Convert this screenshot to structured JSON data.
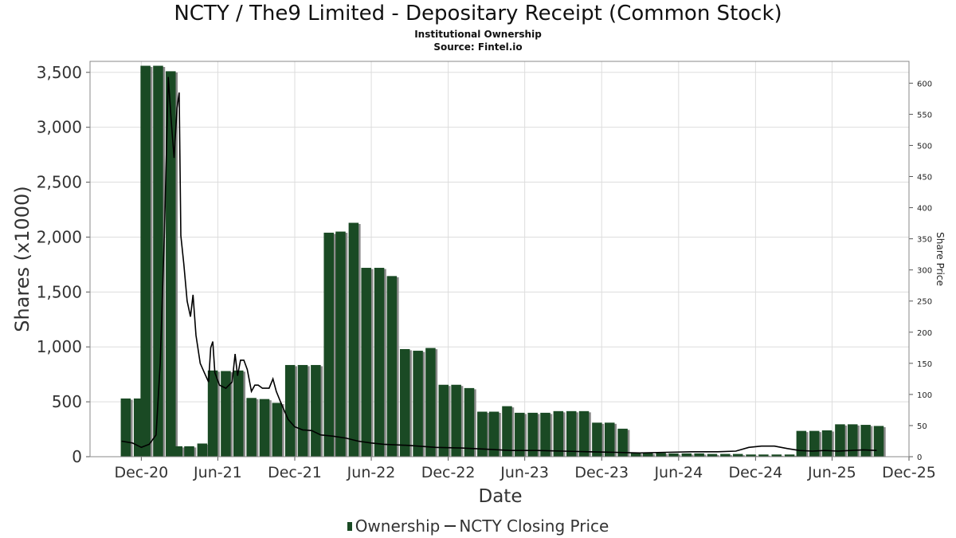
{
  "title": "NCTY / The9 Limited - Depositary Receipt (Common Stock)",
  "subtitle1": "Institutional Ownership",
  "subtitle2": "Source: Fintel.io",
  "legend": {
    "ownership": "Ownership",
    "price": "NCTY Closing Price"
  },
  "colors": {
    "bar": "#1a4a24",
    "bar_shadow": "#8a8a8a",
    "price_line": "#000000",
    "grid": "#dddddd",
    "frame": "#888888"
  },
  "chart_data": {
    "type": "bar",
    "xlabel": "Date",
    "ylabel": "Shares (x1000)",
    "y2label": "Share Price",
    "xlim": [
      "2020-08-01",
      "2025-12-01"
    ],
    "ylim": [
      0,
      3600
    ],
    "y2lim": [
      0,
      635
    ],
    "grid": true,
    "legend_position": "bottom",
    "x_ticks": [
      {
        "date": "2020-12-01",
        "label": "Dec-20"
      },
      {
        "date": "2021-06-01",
        "label": "Jun-21"
      },
      {
        "date": "2021-12-01",
        "label": "Dec-21"
      },
      {
        "date": "2022-06-01",
        "label": "Jun-22"
      },
      {
        "date": "2022-12-01",
        "label": "Dec-22"
      },
      {
        "date": "2023-06-01",
        "label": "Jun-23"
      },
      {
        "date": "2023-12-01",
        "label": "Dec-23"
      },
      {
        "date": "2024-06-01",
        "label": "Jun-24"
      },
      {
        "date": "2024-12-01",
        "label": "Dec-24"
      },
      {
        "date": "2025-06-01",
        "label": "Jun-25"
      },
      {
        "date": "2025-12-01",
        "label": "Dec-25"
      }
    ],
    "y_ticks": [
      {
        "value": 0,
        "label": "0"
      },
      {
        "value": 500,
        "label": "500"
      },
      {
        "value": 1000,
        "label": "1,000"
      },
      {
        "value": 1500,
        "label": "1,500"
      },
      {
        "value": 2000,
        "label": "2,000"
      },
      {
        "value": 2500,
        "label": "2,500"
      },
      {
        "value": 3000,
        "label": "3,000"
      },
      {
        "value": 3500,
        "label": "3,500"
      }
    ],
    "y2_ticks": [
      {
        "value": 0,
        "label": "0"
      },
      {
        "value": 50,
        "label": "50"
      },
      {
        "value": 100,
        "label": "100"
      },
      {
        "value": 150,
        "label": "150"
      },
      {
        "value": 200,
        "label": "200"
      },
      {
        "value": 250,
        "label": "250"
      },
      {
        "value": 300,
        "label": "300"
      },
      {
        "value": 350,
        "label": "350"
      },
      {
        "value": 400,
        "label": "400"
      },
      {
        "value": 450,
        "label": "450"
      },
      {
        "value": 500,
        "label": "500"
      },
      {
        "value": 550,
        "label": "550"
      },
      {
        "value": 600,
        "label": "600"
      }
    ],
    "series": [
      {
        "name": "Ownership",
        "kind": "bar",
        "points": [
          {
            "date": "2020-10-15",
            "value": 530
          },
          {
            "date": "2020-11-15",
            "value": 530
          },
          {
            "date": "2020-12-01",
            "value": 3560
          },
          {
            "date": "2020-12-31",
            "value": 3560
          },
          {
            "date": "2021-01-30",
            "value": 3510
          },
          {
            "date": "2021-02-15",
            "value": 95
          },
          {
            "date": "2021-03-15",
            "value": 95
          },
          {
            "date": "2021-04-15",
            "value": 120
          },
          {
            "date": "2021-05-10",
            "value": 785
          },
          {
            "date": "2021-06-10",
            "value": 780
          },
          {
            "date": "2021-07-10",
            "value": 785
          },
          {
            "date": "2021-08-10",
            "value": 535
          },
          {
            "date": "2021-09-10",
            "value": 525
          },
          {
            "date": "2021-10-10",
            "value": 490
          },
          {
            "date": "2021-11-10",
            "value": 835
          },
          {
            "date": "2021-12-10",
            "value": 835
          },
          {
            "date": "2022-01-10",
            "value": 835
          },
          {
            "date": "2022-02-10",
            "value": 2040
          },
          {
            "date": "2022-03-10",
            "value": 2050
          },
          {
            "date": "2022-04-10",
            "value": 2130
          },
          {
            "date": "2022-05-10",
            "value": 1720
          },
          {
            "date": "2022-06-10",
            "value": 1720
          },
          {
            "date": "2022-07-10",
            "value": 1645
          },
          {
            "date": "2022-08-10",
            "value": 980
          },
          {
            "date": "2022-09-10",
            "value": 965
          },
          {
            "date": "2022-10-10",
            "value": 990
          },
          {
            "date": "2022-11-10",
            "value": 655
          },
          {
            "date": "2022-12-10",
            "value": 655
          },
          {
            "date": "2023-01-10",
            "value": 625
          },
          {
            "date": "2023-02-10",
            "value": 410
          },
          {
            "date": "2023-03-10",
            "value": 410
          },
          {
            "date": "2023-04-10",
            "value": 460
          },
          {
            "date": "2023-05-10",
            "value": 400
          },
          {
            "date": "2023-06-10",
            "value": 400
          },
          {
            "date": "2023-07-10",
            "value": 400
          },
          {
            "date": "2023-08-10",
            "value": 415
          },
          {
            "date": "2023-09-10",
            "value": 415
          },
          {
            "date": "2023-10-10",
            "value": 415
          },
          {
            "date": "2023-11-10",
            "value": 310
          },
          {
            "date": "2023-12-10",
            "value": 310
          },
          {
            "date": "2024-01-10",
            "value": 255
          },
          {
            "date": "2024-02-10",
            "value": 35
          },
          {
            "date": "2024-03-10",
            "value": 35
          },
          {
            "date": "2024-04-10",
            "value": 35
          },
          {
            "date": "2024-05-10",
            "value": 30
          },
          {
            "date": "2024-06-10",
            "value": 30
          },
          {
            "date": "2024-07-10",
            "value": 30
          },
          {
            "date": "2024-08-10",
            "value": 25
          },
          {
            "date": "2024-09-10",
            "value": 25
          },
          {
            "date": "2024-10-10",
            "value": 25
          },
          {
            "date": "2024-11-10",
            "value": 20
          },
          {
            "date": "2024-12-10",
            "value": 20
          },
          {
            "date": "2025-01-10",
            "value": 20
          },
          {
            "date": "2025-02-10",
            "value": 20
          },
          {
            "date": "2025-03-10",
            "value": 235
          },
          {
            "date": "2025-04-10",
            "value": 235
          },
          {
            "date": "2025-05-10",
            "value": 240
          },
          {
            "date": "2025-06-10",
            "value": 295
          },
          {
            "date": "2025-07-10",
            "value": 295
          },
          {
            "date": "2025-08-10",
            "value": 290
          },
          {
            "date": "2025-09-10",
            "value": 280
          }
        ]
      },
      {
        "name": "NCTY Closing Price",
        "kind": "line",
        "axis": "right",
        "points": [
          {
            "date": "2020-10-15",
            "value": 25
          },
          {
            "date": "2020-11-10",
            "value": 22
          },
          {
            "date": "2020-12-01",
            "value": 15
          },
          {
            "date": "2020-12-20",
            "value": 20
          },
          {
            "date": "2021-01-05",
            "value": 35
          },
          {
            "date": "2021-01-15",
            "value": 150
          },
          {
            "date": "2021-01-25",
            "value": 360
          },
          {
            "date": "2021-02-03",
            "value": 610
          },
          {
            "date": "2021-02-10",
            "value": 540
          },
          {
            "date": "2021-02-17",
            "value": 480
          },
          {
            "date": "2021-02-24",
            "value": 560
          },
          {
            "date": "2021-03-01",
            "value": 585
          },
          {
            "date": "2021-03-05",
            "value": 355
          },
          {
            "date": "2021-03-12",
            "value": 310
          },
          {
            "date": "2021-03-20",
            "value": 250
          },
          {
            "date": "2021-03-28",
            "value": 225
          },
          {
            "date": "2021-04-03",
            "value": 260
          },
          {
            "date": "2021-04-10",
            "value": 195
          },
          {
            "date": "2021-04-20",
            "value": 150
          },
          {
            "date": "2021-04-30",
            "value": 135
          },
          {
            "date": "2021-05-10",
            "value": 120
          },
          {
            "date": "2021-05-15",
            "value": 175
          },
          {
            "date": "2021-05-20",
            "value": 185
          },
          {
            "date": "2021-05-25",
            "value": 135
          },
          {
            "date": "2021-06-05",
            "value": 115
          },
          {
            "date": "2021-06-20",
            "value": 110
          },
          {
            "date": "2021-07-05",
            "value": 120
          },
          {
            "date": "2021-07-12",
            "value": 165
          },
          {
            "date": "2021-07-18",
            "value": 130
          },
          {
            "date": "2021-07-25",
            "value": 155
          },
          {
            "date": "2021-08-02",
            "value": 155
          },
          {
            "date": "2021-08-10",
            "value": 140
          },
          {
            "date": "2021-08-20",
            "value": 105
          },
          {
            "date": "2021-08-28",
            "value": 115
          },
          {
            "date": "2021-09-05",
            "value": 115
          },
          {
            "date": "2021-09-15",
            "value": 110
          },
          {
            "date": "2021-10-01",
            "value": 110
          },
          {
            "date": "2021-10-10",
            "value": 125
          },
          {
            "date": "2021-10-18",
            "value": 105
          },
          {
            "date": "2021-10-30",
            "value": 85
          },
          {
            "date": "2021-11-15",
            "value": 60
          },
          {
            "date": "2021-12-01",
            "value": 48
          },
          {
            "date": "2021-12-20",
            "value": 43
          },
          {
            "date": "2022-01-10",
            "value": 42
          },
          {
            "date": "2022-02-01",
            "value": 35
          },
          {
            "date": "2022-03-01",
            "value": 33
          },
          {
            "date": "2022-04-01",
            "value": 30
          },
          {
            "date": "2022-05-01",
            "value": 25
          },
          {
            "date": "2022-06-01",
            "value": 22
          },
          {
            "date": "2022-07-01",
            "value": 20
          },
          {
            "date": "2022-09-01",
            "value": 18
          },
          {
            "date": "2022-11-01",
            "value": 15
          },
          {
            "date": "2023-01-01",
            "value": 14
          },
          {
            "date": "2023-03-01",
            "value": 12
          },
          {
            "date": "2023-05-01",
            "value": 10
          },
          {
            "date": "2023-07-01",
            "value": 10
          },
          {
            "date": "2023-09-01",
            "value": 9
          },
          {
            "date": "2023-11-01",
            "value": 8
          },
          {
            "date": "2024-01-01",
            "value": 7
          },
          {
            "date": "2024-03-01",
            "value": 6
          },
          {
            "date": "2024-05-01",
            "value": 7
          },
          {
            "date": "2024-07-01",
            "value": 8
          },
          {
            "date": "2024-09-01",
            "value": 8
          },
          {
            "date": "2024-10-15",
            "value": 9
          },
          {
            "date": "2024-11-15",
            "value": 15
          },
          {
            "date": "2024-12-15",
            "value": 17
          },
          {
            "date": "2025-01-15",
            "value": 17
          },
          {
            "date": "2025-02-15",
            "value": 13
          },
          {
            "date": "2025-03-15",
            "value": 10
          },
          {
            "date": "2025-04-15",
            "value": 9
          },
          {
            "date": "2025-05-15",
            "value": 10
          },
          {
            "date": "2025-06-15",
            "value": 9
          },
          {
            "date": "2025-07-15",
            "value": 10
          },
          {
            "date": "2025-08-15",
            "value": 11
          },
          {
            "date": "2025-09-15",
            "value": 10
          }
        ]
      }
    ]
  }
}
